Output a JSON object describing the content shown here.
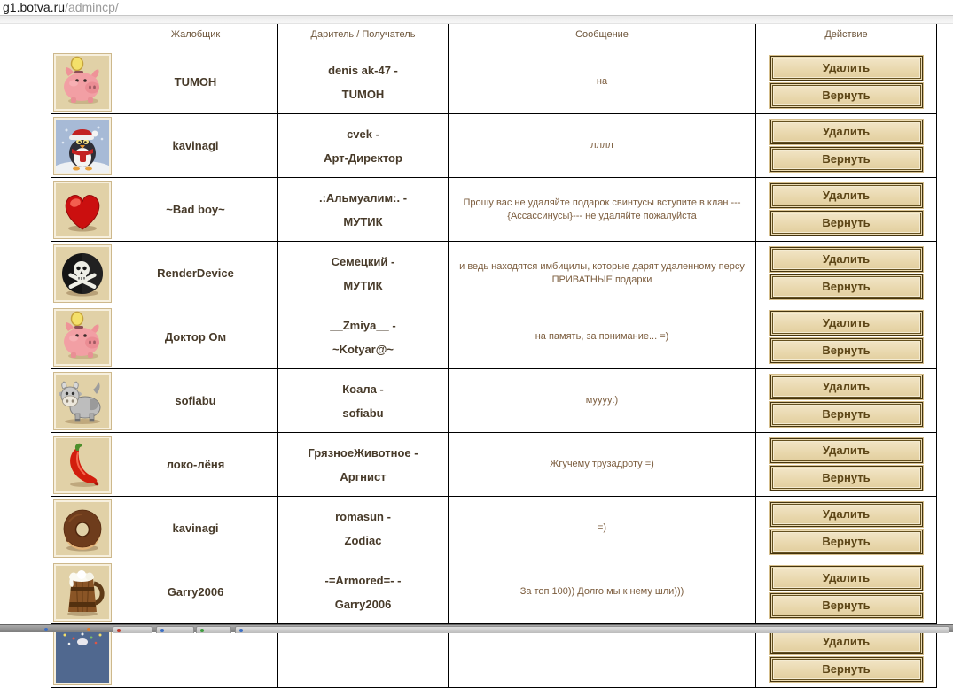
{
  "browser": {
    "url_host": "g1.botva.ru",
    "url_path": "/admincp/"
  },
  "table": {
    "headers": {
      "icon": "",
      "complainant": "Жалобщик",
      "giver_receiver": "Даритель / Получатель",
      "message": "Сообщение",
      "action": "Действие"
    },
    "action_buttons": {
      "delete": "Удалить",
      "return": "Вернуть"
    },
    "rows": [
      {
        "icon": "piggy-bank",
        "complainant": "TUMOH",
        "giver": "denis ak-47 -",
        "receiver": "TUMOH",
        "message": "на"
      },
      {
        "icon": "penguin",
        "complainant": "kavinagi",
        "giver": "cvek -",
        "receiver": "Арт-Директор",
        "message": "лллл"
      },
      {
        "icon": "heart",
        "complainant": "~Bad boy~",
        "giver": ".:Альмуалим:. -",
        "receiver": "МУТИК",
        "message": "Прошу вас не удаляйте подарок свинтусы вступите в клан ---{Ассассинусы}--- не удаляйте пожалуйста"
      },
      {
        "icon": "pirate-mark",
        "complainant": "RenderDevice",
        "giver": "Семецкий -",
        "receiver": "МУТИК",
        "message": "и ведь находятся имбицилы, которые дарят удаленному персу ПРИВАТНЫЕ подарки"
      },
      {
        "icon": "piggy-bank",
        "complainant": "Доктор Ом",
        "giver": "__Zmiya__ -",
        "receiver": "~Kotyar@~",
        "message": "на память, за понимание... =)"
      },
      {
        "icon": "cow",
        "complainant": "sofiabu",
        "giver": "Коала -",
        "receiver": "sofiabu",
        "message": "муууу:)"
      },
      {
        "icon": "chili-pepper",
        "complainant": "локо-лёня",
        "giver": "ГрязноеЖивотное -",
        "receiver": "Аргнист",
        "message": "Жгучему трузадроту =)"
      },
      {
        "icon": "donut",
        "complainant": "kavinagi",
        "giver": "romasun -",
        "receiver": "Zodiac",
        "message": "=)"
      },
      {
        "icon": "beer-mug",
        "complainant": "Garry2006",
        "giver": "-=Armored=- -",
        "receiver": "Garry2006",
        "message": "За топ 100)) Долго мы к нему шли)))"
      },
      {
        "icon": "night-sky",
        "complainant": "",
        "giver": "",
        "receiver": "",
        "message": ""
      }
    ]
  },
  "taskbar": {
    "quick_launch_icons": [
      "blue-app-icon",
      "orange-app-icon"
    ],
    "window_buttons": [
      {
        "icon": "red-app-icon"
      },
      {
        "icon": "blue-app-icon"
      },
      {
        "icon": "green-app-icon"
      },
      {
        "icon": "blue-app-icon"
      }
    ]
  },
  "colors": {
    "button_face": "#e9d8ae",
    "button_border": "#44340f",
    "button_text": "#5c4516",
    "name_text": "#473a29",
    "message_text": "#7b5c3d",
    "header_text": "#6d553a",
    "table_border": "#000000",
    "icon_tile_bg": "#e1d1a7"
  }
}
